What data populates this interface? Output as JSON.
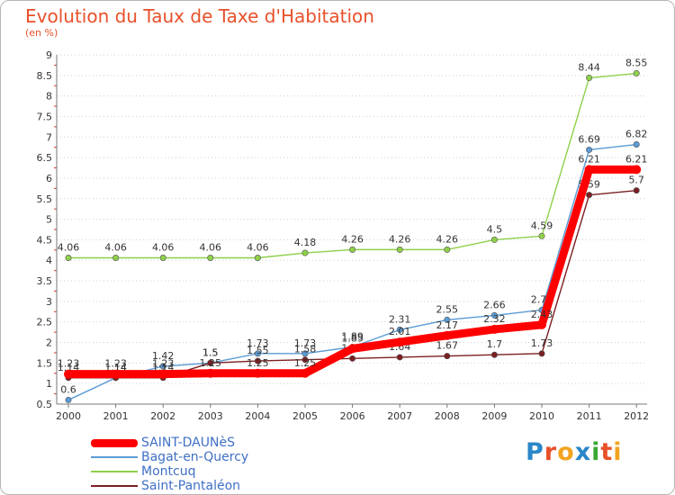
{
  "header": {
    "title": "Evolution du Taux de Taxe d'Habitation",
    "subtitle": "(en %)"
  },
  "logo": {
    "text": "Proxiti",
    "colors": [
      "#2a86c8",
      "#e8502a",
      "#f2a321",
      "#2a86c8",
      "#39a935",
      "#e8502a",
      "#f2a321"
    ]
  },
  "chart_data": {
    "type": "line",
    "x": [
      "2000",
      "2001",
      "2002",
      "2003",
      "2004",
      "2005",
      "2006",
      "2007",
      "2008",
      "2009",
      "2010",
      "2011",
      "2012"
    ],
    "ylim": [
      0.5,
      9
    ],
    "yticks": [
      "0.5",
      "1",
      "1.5",
      "2",
      "2.5",
      "3",
      "3.5",
      "4",
      "4.5",
      "5",
      "5.5",
      "6",
      "6.5",
      "7",
      "7.5",
      "8",
      "8.5",
      "9"
    ],
    "grid": "horizontal-dotted",
    "legend_position": "bottom-left",
    "series": [
      {
        "name": "Montcuq",
        "color": "#8ed04a",
        "values": [
          4.06,
          4.06,
          4.06,
          4.06,
          4.06,
          4.18,
          4.26,
          4.26,
          4.26,
          4.5,
          4.59,
          8.44,
          8.55
        ],
        "labels": [
          "4.06",
          "4.06",
          "4.06",
          "4.06",
          "4.06",
          "4.18",
          "4.26",
          "4.26",
          "4.26",
          "4.5",
          "4.59",
          "8.44",
          "8.55"
        ]
      },
      {
        "name": "Bagat-en-Quercy",
        "color": "#5b9bd5",
        "values": [
          0.6,
          1.14,
          1.42,
          1.5,
          1.73,
          1.73,
          1.89,
          2.31,
          2.55,
          2.66,
          2.79,
          6.69,
          6.82
        ],
        "labels": [
          "0.6",
          "1.14",
          "1.42",
          "1.5",
          "1.73",
          "1.73",
          "1.89",
          "2.31",
          "2.55",
          "2.66",
          "2.79",
          "6.69",
          "6.82"
        ]
      },
      {
        "name": "Saint-Pantaléon",
        "color": "#7b1f22",
        "values": [
          1.14,
          1.14,
          1.14,
          1.5,
          1.55,
          1.58,
          1.61,
          1.64,
          1.67,
          1.7,
          1.73,
          5.59,
          5.7
        ],
        "labels": [
          "1.14",
          "1.14",
          "1.14",
          "1.5",
          "1.55",
          "1.58",
          "1.61",
          "1.64",
          "1.67",
          "1.7",
          "1.73",
          "5.59",
          "5.7"
        ]
      },
      {
        "name": "SAINT-DAUNèS",
        "color": "#ff0000",
        "values": [
          1.23,
          1.23,
          1.23,
          1.25,
          1.25,
          1.25,
          1.85,
          2.01,
          2.17,
          2.32,
          2.43,
          6.21,
          6.21
        ],
        "labels": [
          "1.23",
          "1.23",
          "1.23",
          "1.25",
          "1.25",
          "1.25",
          "1.85",
          "2.01",
          "2.17",
          "2.32",
          "2.43",
          "6.21",
          "6.21"
        ]
      }
    ],
    "legend_order": [
      "SAINT-DAUNèS",
      "Bagat-en-Quercy",
      "Montcuq",
      "Saint-Pantaléon"
    ]
  }
}
